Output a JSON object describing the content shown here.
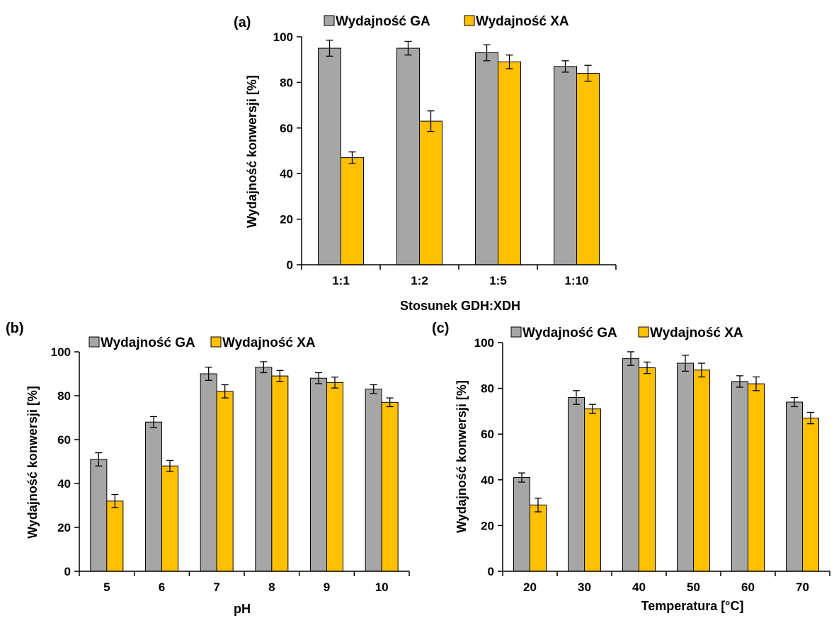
{
  "colors": {
    "ga": "#a6a6a6",
    "xa": "#ffc000",
    "axis": "#000000",
    "bar_stroke": "#000000"
  },
  "chart_data": [
    {
      "type": "bar",
      "panel_label": "(a)",
      "title": "",
      "xlabel": "Stosunek GDH:XDH",
      "ylabel": "Wydajność konwersji [%]",
      "categories": [
        "1:1",
        "1:2",
        "1:5",
        "1:10"
      ],
      "ylim": [
        0,
        100
      ],
      "yticks": [
        0,
        20,
        40,
        60,
        80,
        100
      ],
      "grid": false,
      "legend": "top",
      "series": [
        {
          "name": "Wydajność GA",
          "color": "#a6a6a6",
          "values": [
            95,
            95,
            93,
            87
          ],
          "errors": [
            3.5,
            3,
            3.5,
            2.5
          ]
        },
        {
          "name": "Wydajność XA",
          "color": "#ffc000",
          "values": [
            47,
            63,
            89,
            84
          ],
          "errors": [
            2.5,
            4.5,
            3,
            3.5
          ]
        }
      ]
    },
    {
      "type": "bar",
      "panel_label": "(b)",
      "title": "",
      "xlabel": "pH",
      "ylabel": "Wydajność konwersji [%]",
      "categories": [
        "5",
        "6",
        "7",
        "8",
        "9",
        "10"
      ],
      "ylim": [
        0,
        100
      ],
      "yticks": [
        0,
        20,
        40,
        60,
        80,
        100
      ],
      "grid": false,
      "legend": "top",
      "series": [
        {
          "name": "Wydajność GA",
          "color": "#a6a6a6",
          "values": [
            51,
            68,
            90,
            93,
            88,
            83
          ],
          "errors": [
            3,
            2.5,
            3,
            2.5,
            2.5,
            2
          ]
        },
        {
          "name": "Wydajność XA",
          "color": "#ffc000",
          "values": [
            32,
            48,
            82,
            89,
            86,
            77
          ],
          "errors": [
            3,
            2.5,
            3,
            2.5,
            2.5,
            2
          ]
        }
      ]
    },
    {
      "type": "bar",
      "panel_label": "(c)",
      "title": "",
      "xlabel": "Temperatura [°C]",
      "ylabel": "Wydajność konwersji [%]",
      "categories": [
        "20",
        "30",
        "40",
        "50",
        "60",
        "70"
      ],
      "ylim": [
        0,
        100
      ],
      "yticks": [
        0,
        20,
        40,
        60,
        80,
        100
      ],
      "grid": false,
      "legend": "top",
      "series": [
        {
          "name": "Wydajność GA",
          "color": "#a6a6a6",
          "values": [
            41,
            76,
            93,
            91,
            83,
            74
          ],
          "errors": [
            2,
            3,
            3,
            3.5,
            2.5,
            2
          ]
        },
        {
          "name": "Wydajność XA",
          "color": "#ffc000",
          "values": [
            29,
            71,
            89,
            88,
            82,
            67
          ],
          "errors": [
            3,
            2,
            2.5,
            3,
            3,
            2.5
          ]
        }
      ]
    }
  ]
}
